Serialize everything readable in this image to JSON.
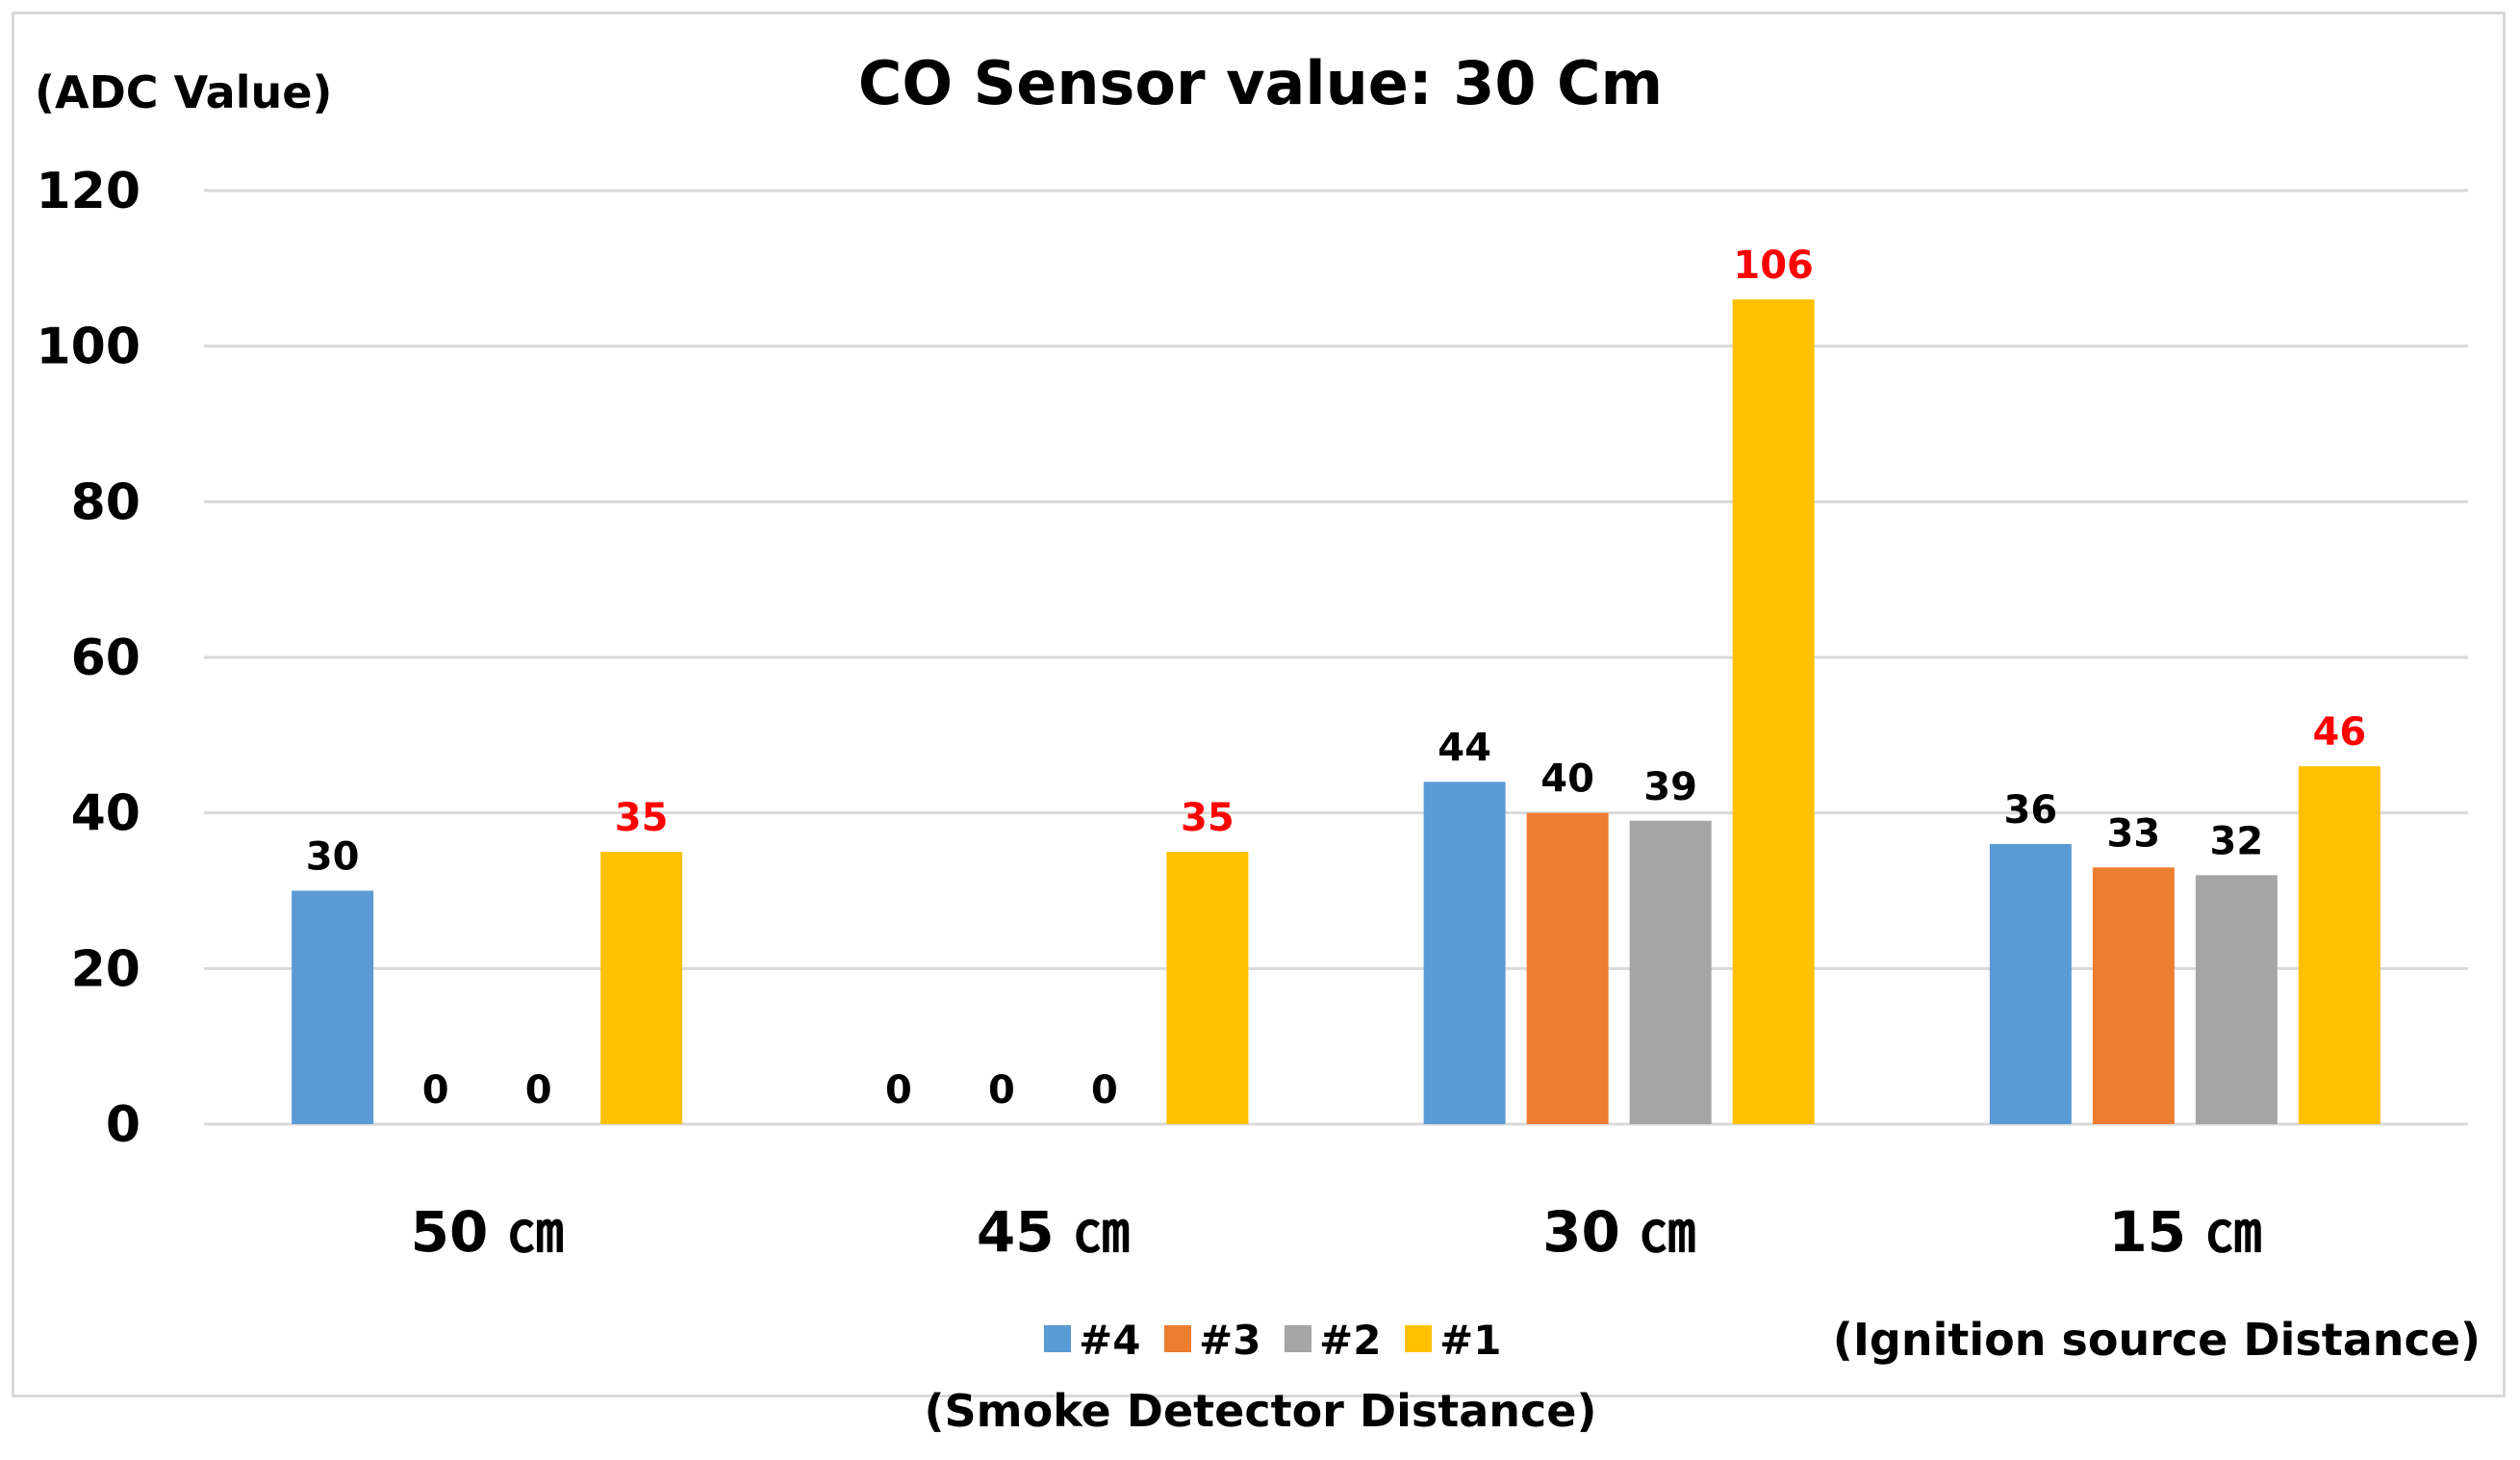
{
  "chart_data": {
    "type": "bar",
    "title": "CO Sensor value: 30 Cm",
    "ylabel": "(ADC Value)",
    "xlabel": "(Ignition source Distance)",
    "legend_title": "(Smoke Detector Distance)",
    "legend_position": "bottom",
    "grid": true,
    "ylim": [
      0,
      120
    ],
    "yticks": [
      "0",
      "20",
      "40",
      "60",
      "80",
      "100",
      "120"
    ],
    "categories": [
      "50 ㎝",
      "45 ㎝",
      "30 ㎝",
      "15 ㎝"
    ],
    "series": [
      {
        "name": "#4",
        "color": "#5b9bd5",
        "values": [
          30,
          0,
          44,
          36
        ],
        "labels": [
          "30",
          "0",
          "44",
          "36"
        ]
      },
      {
        "name": "#3",
        "color": "#ed7d31",
        "values": [
          0,
          0,
          40,
          33
        ],
        "labels": [
          "0",
          "0",
          "40",
          "33"
        ]
      },
      {
        "name": "#2",
        "color": "#a5a5a5",
        "values": [
          0,
          0,
          39,
          32
        ],
        "labels": [
          "0",
          "0",
          "39",
          "32"
        ]
      },
      {
        "name": "#1",
        "color": "#ffc000",
        "values": [
          35,
          35,
          106,
          46
        ],
        "labels": [
          "35",
          "35",
          "106",
          "46"
        ]
      }
    ],
    "highlight_label_color": "#ff0000",
    "highlight_series": "#1",
    "label_color": "#000000",
    "grid_color": "#d9d9d9"
  }
}
